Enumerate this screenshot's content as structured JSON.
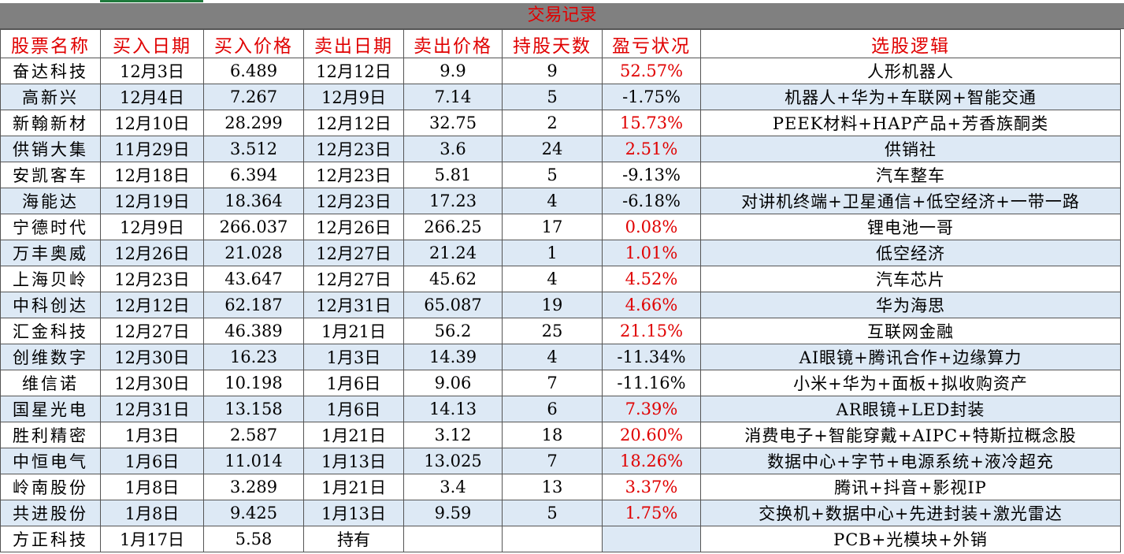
{
  "title": "交易记录",
  "headers": [
    "股票名称",
    "买入日期",
    "买入价格",
    "卖出日期",
    "卖出价格",
    "持股天数",
    "盈亏状况",
    "选股逻辑"
  ],
  "rows": [
    {
      "name": "奋达科技",
      "buy_date": "12月3日",
      "buy_price": "6.489",
      "sell_date": "12月12日",
      "sell_price": "9.9",
      "days": "9",
      "pnl": "52.57%",
      "logic": "人形机器人"
    },
    {
      "name": "高新兴",
      "buy_date": "12月4日",
      "buy_price": "7.267",
      "sell_date": "12月9日",
      "sell_price": "7.14",
      "days": "5",
      "pnl": "-1.75%",
      "logic": "机器人+华为+车联网+智能交通"
    },
    {
      "name": "新翰新材",
      "buy_date": "12月10日",
      "buy_price": "28.299",
      "sell_date": "12月12日",
      "sell_price": "32.75",
      "days": "2",
      "pnl": "15.73%",
      "logic": "PEEK材料+HAP产品+芳香族酮类"
    },
    {
      "name": "供销大集",
      "buy_date": "11月29日",
      "buy_price": "3.512",
      "sell_date": "12月23日",
      "sell_price": "3.6",
      "days": "24",
      "pnl": "2.51%",
      "logic": "供销社"
    },
    {
      "name": "安凯客车",
      "buy_date": "12月18日",
      "buy_price": "6.394",
      "sell_date": "12月23日",
      "sell_price": "5.81",
      "days": "5",
      "pnl": "-9.13%",
      "logic": "汽车整车"
    },
    {
      "name": "海能达",
      "buy_date": "12月19日",
      "buy_price": "18.364",
      "sell_date": "12月23日",
      "sell_price": "17.23",
      "days": "4",
      "pnl": "-6.18%",
      "logic": "对讲机终端+卫星通信+低空经济+一带一路"
    },
    {
      "name": "宁德时代",
      "buy_date": "12月9日",
      "buy_price": "266.037",
      "sell_date": "12月26日",
      "sell_price": "266.25",
      "days": "17",
      "pnl": "0.08%",
      "logic": "锂电池一哥"
    },
    {
      "name": "万丰奥威",
      "buy_date": "12月26日",
      "buy_price": "21.028",
      "sell_date": "12月27日",
      "sell_price": "21.24",
      "days": "1",
      "pnl": "1.01%",
      "logic": "低空经济"
    },
    {
      "name": "上海贝岭",
      "buy_date": "12月23日",
      "buy_price": "43.647",
      "sell_date": "12月27日",
      "sell_price": "45.62",
      "days": "4",
      "pnl": "4.52%",
      "logic": "汽车芯片"
    },
    {
      "name": "中科创达",
      "buy_date": "12月12日",
      "buy_price": "62.187",
      "sell_date": "12月31日",
      "sell_price": "65.087",
      "days": "19",
      "pnl": "4.66%",
      "logic": "华为海思"
    },
    {
      "name": "汇金科技",
      "buy_date": "12月27日",
      "buy_price": "46.389",
      "sell_date": "1月21日",
      "sell_price": "56.2",
      "days": "25",
      "pnl": "21.15%",
      "logic": "互联网金融"
    },
    {
      "name": "创维数字",
      "buy_date": "12月30日",
      "buy_price": "16.23",
      "sell_date": "1月3日",
      "sell_price": "14.39",
      "days": "4",
      "pnl": "-11.34%",
      "logic": "AI眼镜+腾讯合作+边缘算力"
    },
    {
      "name": "维信诺",
      "buy_date": "12月30日",
      "buy_price": "10.198",
      "sell_date": "1月6日",
      "sell_price": "9.06",
      "days": "7",
      "pnl": "-11.16%",
      "logic": "小米+华为+面板+拟收购资产"
    },
    {
      "name": "国星光电",
      "buy_date": "12月31日",
      "buy_price": "13.158",
      "sell_date": "1月6日",
      "sell_price": "14.13",
      "days": "6",
      "pnl": "7.39%",
      "logic": "AR眼镜+LED封装"
    },
    {
      "name": "胜利精密",
      "buy_date": "1月3日",
      "buy_price": "2.587",
      "sell_date": "1月21日",
      "sell_price": "3.12",
      "days": "18",
      "pnl": "20.60%",
      "logic": "消费电子+智能穿戴+AIPC+特斯拉概念股"
    },
    {
      "name": "中恒电气",
      "buy_date": "1月6日",
      "buy_price": "11.014",
      "sell_date": "1月13日",
      "sell_price": "13.025",
      "days": "7",
      "pnl": "18.26%",
      "logic": "数据中心+字节+电源系统+液冷超充"
    },
    {
      "name": "岭南股份",
      "buy_date": "1月8日",
      "buy_price": "3.289",
      "sell_date": "1月21日",
      "sell_price": "3.4",
      "days": "13",
      "pnl": "3.37%",
      "logic": "腾讯+抖音+影视IP"
    },
    {
      "name": "共进股份",
      "buy_date": "1月8日",
      "buy_price": "9.425",
      "sell_date": "1月13日",
      "sell_price": "9.59",
      "days": "5",
      "pnl": "1.75%",
      "logic": "交换机+数据中心+先进封装+激光雷达"
    },
    {
      "name": "方正科技",
      "buy_date": "1月17日",
      "buy_price": "5.58",
      "sell_date": "持有",
      "sell_price": "",
      "days": "",
      "pnl": "",
      "logic": "PCB+光模块+外销"
    }
  ],
  "colors": {
    "title_bg": "#808080",
    "header_text": "#e00000",
    "alt_row": "#dde9f5",
    "positive": "#e00000"
  }
}
